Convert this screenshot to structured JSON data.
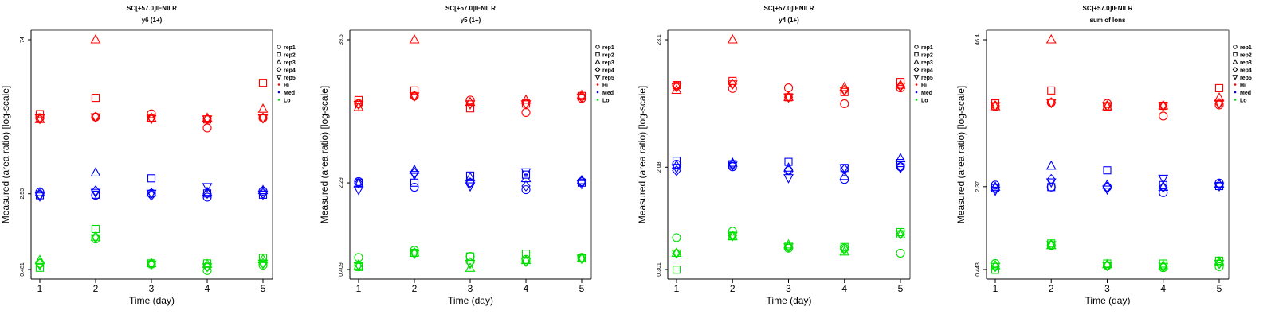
{
  "chart_data": [
    {
      "type": "scatter",
      "title": "SC[+57.0]IENILR",
      "subtitle": "y6 (1+)",
      "xlabel": "Time (day)",
      "ylabel": "Measured (area ratio) [log-scale]",
      "yscale": "log",
      "ylim": [
        0.481,
        74
      ],
      "yticks": [
        {
          "value": 74,
          "label": "74"
        },
        {
          "value": 2.53,
          "label": "2.53"
        },
        {
          "value": 0.481,
          "label": "0.481"
        }
      ],
      "xticks": [
        1,
        2,
        3,
        4,
        5
      ],
      "x": [
        1,
        2,
        3,
        4,
        5
      ],
      "series": [
        {
          "group": "Hi",
          "rep": "rep1",
          "values": [
            13.4,
            13.6,
            14.6,
            10.7,
            13.3
          ]
        },
        {
          "group": "Hi",
          "rep": "rep2",
          "values": [
            14.5,
            20.7,
            13.3,
            12.9,
            28.8
          ]
        },
        {
          "group": "Hi",
          "rep": "rep3",
          "values": [
            12.9,
            74,
            13.3,
            13.3,
            16.2
          ]
        },
        {
          "group": "Hi",
          "rep": "rep4",
          "values": [
            13.1,
            13.6,
            13.3,
            13.0,
            13.3
          ]
        },
        {
          "group": "Hi",
          "rep": "rep5",
          "values": [
            13.3,
            13.6,
            13.1,
            13.0,
            13.3
          ]
        },
        {
          "group": "Med",
          "rep": "rep1",
          "values": [
            2.63,
            2.45,
            2.55,
            2.35,
            2.68
          ]
        },
        {
          "group": "Med",
          "rep": "rep2",
          "values": [
            2.45,
            2.48,
            3.55,
            2.55,
            2.48
          ]
        },
        {
          "group": "Med",
          "rep": "rep3",
          "values": [
            2.6,
            4.0,
            2.58,
            2.62,
            2.72
          ]
        },
        {
          "group": "Med",
          "rep": "rep4",
          "values": [
            2.48,
            2.7,
            2.45,
            2.55,
            2.55
          ]
        },
        {
          "group": "Med",
          "rep": "rep5",
          "values": [
            2.4,
            2.6,
            2.55,
            2.95,
            2.5
          ]
        },
        {
          "group": "Lo",
          "rep": "rep1",
          "values": [
            0.55,
            0.94,
            0.54,
            0.47,
            0.53
          ]
        },
        {
          "group": "Lo",
          "rep": "rep2",
          "values": [
            0.5,
            1.17,
            0.55,
            0.55,
            0.62
          ]
        },
        {
          "group": "Lo",
          "rep": "rep3",
          "values": [
            0.59,
            0.98,
            0.55,
            0.54,
            0.6
          ]
        },
        {
          "group": "Lo",
          "rep": "rep4",
          "values": [
            0.55,
            0.98,
            0.55,
            0.51,
            0.55
          ]
        },
        {
          "group": "Lo",
          "rep": "rep5",
          "values": [
            0.53,
            0.96,
            0.54,
            0.51,
            0.55
          ]
        }
      ]
    },
    {
      "type": "scatter",
      "title": "SC[+57.0]IENILR",
      "subtitle": "y5 (1+)",
      "xlabel": "Time (day)",
      "ylabel": "Measured (area ratio) [log-scale]",
      "yscale": "log",
      "ylim": [
        0.409,
        39.5
      ],
      "yticks": [
        {
          "value": 39.5,
          "label": "39.5"
        },
        {
          "value": 2.29,
          "label": "2.29"
        },
        {
          "value": 0.409,
          "label": "0.409"
        }
      ],
      "xticks": [
        1,
        2,
        3,
        4,
        5
      ],
      "x": [
        1,
        2,
        3,
        4,
        5
      ],
      "series": [
        {
          "group": "Hi",
          "rep": "rep1",
          "values": [
            11.1,
            12.9,
            11.9,
            9.3,
            12.3
          ]
        },
        {
          "group": "Hi",
          "rep": "rep2",
          "values": [
            11.9,
            14.4,
            10.1,
            11.1,
            12.9
          ]
        },
        {
          "group": "Hi",
          "rep": "rep3",
          "values": [
            10.3,
            39.5,
            11.4,
            11.9,
            13.1
          ]
        },
        {
          "group": "Hi",
          "rep": "rep4",
          "values": [
            11.0,
            12.9,
            11.2,
            11.1,
            12.6
          ]
        },
        {
          "group": "Hi",
          "rep": "rep5",
          "values": [
            10.9,
            12.9,
            11.0,
            11.0,
            12.6
          ]
        },
        {
          "group": "Med",
          "rep": "rep1",
          "values": [
            2.35,
            2.1,
            2.3,
            2.0,
            2.35
          ]
        },
        {
          "group": "Med",
          "rep": "rep2",
          "values": [
            2.3,
            2.3,
            2.65,
            2.7,
            2.3
          ]
        },
        {
          "group": "Med",
          "rep": "rep3",
          "values": [
            2.25,
            2.95,
            2.55,
            2.5,
            2.4
          ]
        },
        {
          "group": "Med",
          "rep": "rep4",
          "values": [
            2.28,
            2.8,
            2.3,
            2.15,
            2.35
          ]
        },
        {
          "group": "Med",
          "rep": "rep5",
          "values": [
            2.0,
            2.7,
            2.15,
            2.85,
            2.25
          ]
        },
        {
          "group": "Lo",
          "rep": "rep1",
          "values": [
            0.52,
            0.6,
            0.53,
            0.5,
            0.52
          ]
        },
        {
          "group": "Lo",
          "rep": "rep2",
          "values": [
            0.43,
            0.57,
            0.53,
            0.56,
            0.51
          ]
        },
        {
          "group": "Lo",
          "rep": "rep3",
          "values": [
            0.44,
            0.57,
            0.42,
            0.49,
            0.51
          ]
        },
        {
          "group": "Lo",
          "rep": "rep4",
          "values": [
            0.45,
            0.57,
            0.47,
            0.48,
            0.51
          ]
        },
        {
          "group": "Lo",
          "rep": "rep5",
          "values": [
            0.44,
            0.56,
            0.46,
            0.48,
            0.51
          ]
        }
      ]
    },
    {
      "type": "scatter",
      "title": "SC[+57.0]IENILR",
      "subtitle": "y4 (1+)",
      "xlabel": "Time (day)",
      "ylabel": "Measured (area ratio) [log-scale]",
      "yscale": "log",
      "ylim": [
        0.301,
        23.1
      ],
      "yticks": [
        {
          "value": 23.1,
          "label": "23.1"
        },
        {
          "value": 2.08,
          "label": "2.08"
        },
        {
          "value": 0.301,
          "label": "0.301"
        }
      ],
      "xticks": [
        1,
        2,
        3,
        4,
        5
      ],
      "x": [
        1,
        2,
        3,
        4,
        5
      ],
      "series": [
        {
          "group": "Hi",
          "rep": "rep1",
          "values": [
            9.7,
            9.2,
            9.3,
            6.9,
            9.3
          ]
        },
        {
          "group": "Hi",
          "rep": "rep2",
          "values": [
            9.8,
            10.6,
            7.8,
            8.6,
            10.4
          ]
        },
        {
          "group": "Hi",
          "rep": "rep3",
          "values": [
            8.9,
            23.1,
            7.8,
            9.4,
            9.8
          ]
        },
        {
          "group": "Hi",
          "rep": "rep4",
          "values": [
            9.5,
            10.0,
            7.8,
            8.9,
            9.6
          ]
        },
        {
          "group": "Hi",
          "rep": "rep5",
          "values": [
            9.5,
            10.0,
            7.8,
            8.9,
            9.6
          ]
        },
        {
          "group": "Med",
          "rep": "rep1",
          "values": [
            2.2,
            2.1,
            1.95,
            1.65,
            2.1
          ]
        },
        {
          "group": "Med",
          "rep": "rep2",
          "values": [
            2.35,
            2.2,
            2.3,
            2.05,
            2.25
          ]
        },
        {
          "group": "Med",
          "rep": "rep3",
          "values": [
            2.15,
            2.25,
            2.05,
            1.75,
            2.45
          ]
        },
        {
          "group": "Med",
          "rep": "rep4",
          "values": [
            1.95,
            2.2,
            1.98,
            2.0,
            2.1
          ]
        },
        {
          "group": "Med",
          "rep": "rep5",
          "values": [
            2.05,
            2.15,
            1.7,
            2.05,
            2.05
          ]
        },
        {
          "group": "Lo",
          "rep": "rep1",
          "values": [
            0.55,
            0.62,
            0.45,
            0.45,
            0.41
          ]
        },
        {
          "group": "Lo",
          "rep": "rep2",
          "values": [
            0.3,
            0.57,
            0.47,
            0.46,
            0.61
          ]
        },
        {
          "group": "Lo",
          "rep": "rep3",
          "values": [
            0.41,
            0.56,
            0.48,
            0.42,
            0.58
          ]
        },
        {
          "group": "Lo",
          "rep": "rep4",
          "values": [
            0.41,
            0.57,
            0.46,
            0.44,
            0.59
          ]
        },
        {
          "group": "Lo",
          "rep": "rep5",
          "values": [
            0.41,
            0.57,
            0.46,
            0.44,
            0.59
          ]
        }
      ]
    },
    {
      "type": "scatter",
      "title": "SC[+57.0]IENILR",
      "subtitle": "sum of Ions",
      "xlabel": "Time (day)",
      "ylabel": "Measured (area ratio) [log-scale]",
      "yscale": "log",
      "ylim": [
        0.443,
        46.4
      ],
      "yticks": [
        {
          "value": 46.4,
          "label": "46.4"
        },
        {
          "value": 2.37,
          "label": "2.37"
        },
        {
          "value": 0.443,
          "label": "0.443"
        }
      ],
      "xticks": [
        1,
        2,
        3,
        4,
        5
      ],
      "x": [
        1,
        2,
        3,
        4,
        5
      ],
      "series": [
        {
          "group": "Hi",
          "rep": "rep1",
          "values": [
            12.0,
            13.0,
            12.8,
            9.9,
            12.4
          ]
        },
        {
          "group": "Hi",
          "rep": "rep2",
          "values": [
            12.8,
            16.6,
            12.0,
            12.2,
            17.4
          ]
        },
        {
          "group": "Hi",
          "rep": "rep3",
          "values": [
            12.0,
            46.4,
            12.0,
            12.2,
            14.3
          ]
        },
        {
          "group": "Hi",
          "rep": "rep4",
          "values": [
            12.2,
            13.0,
            12.2,
            12.2,
            12.8
          ]
        },
        {
          "group": "Hi",
          "rep": "rep5",
          "values": [
            12.2,
            13.0,
            12.2,
            12.2,
            12.8
          ]
        },
        {
          "group": "Med",
          "rep": "rep1",
          "values": [
            2.45,
            2.35,
            2.35,
            2.1,
            2.55
          ]
        },
        {
          "group": "Med",
          "rep": "rep2",
          "values": [
            2.3,
            2.35,
            3.3,
            2.45,
            2.4
          ]
        },
        {
          "group": "Med",
          "rep": "rep3",
          "values": [
            2.35,
            3.6,
            2.45,
            2.35,
            2.5
          ]
        },
        {
          "group": "Med",
          "rep": "rep4",
          "values": [
            2.3,
            2.75,
            2.35,
            2.35,
            2.45
          ]
        },
        {
          "group": "Med",
          "rep": "rep5",
          "values": [
            2.2,
            2.6,
            2.25,
            2.8,
            2.4
          ]
        },
        {
          "group": "Lo",
          "rep": "rep1",
          "values": [
            0.5,
            0.72,
            0.48,
            0.46,
            0.47
          ]
        },
        {
          "group": "Lo",
          "rep": "rep2",
          "values": [
            0.44,
            0.75,
            0.5,
            0.5,
            0.53
          ]
        },
        {
          "group": "Lo",
          "rep": "rep3",
          "values": [
            0.48,
            0.72,
            0.49,
            0.48,
            0.52
          ]
        },
        {
          "group": "Lo",
          "rep": "rep4",
          "values": [
            0.47,
            0.73,
            0.48,
            0.47,
            0.5
          ]
        },
        {
          "group": "Lo",
          "rep": "rep5",
          "values": [
            0.47,
            0.73,
            0.48,
            0.47,
            0.5
          ]
        }
      ]
    }
  ],
  "legend": {
    "placement": "right",
    "rep_items": [
      {
        "label": "rep1",
        "shape": "circle"
      },
      {
        "label": "rep2",
        "shape": "square"
      },
      {
        "label": "rep3",
        "shape": "triangle-up"
      },
      {
        "label": "rep4",
        "shape": "diamond"
      },
      {
        "label": "rep5",
        "shape": "triangle-down"
      }
    ],
    "group_items": [
      {
        "label": "Hi",
        "color": "#ff0000"
      },
      {
        "label": "Med",
        "color": "#0000ff"
      },
      {
        "label": "Lo",
        "color": "#00e000"
      }
    ]
  },
  "colors": {
    "Hi": "#ff0000",
    "Med": "#0000ff",
    "Lo": "#00e000",
    "axis": "#000000",
    "frame": "#808080"
  }
}
